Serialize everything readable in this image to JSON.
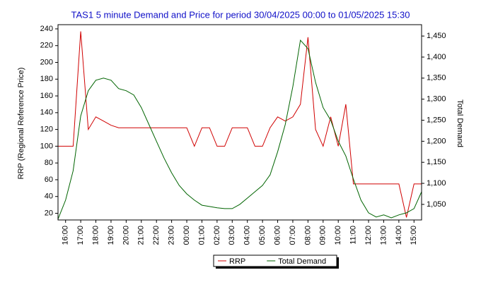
{
  "chart_data": {
    "type": "line",
    "title": "TAS1 5 minute Demand and Price for period 30/04/2025 00:00 to 01/05/2025 15:30",
    "y_label": "RRP (Regional Reference Price)",
    "y2_label": "Total Demand",
    "x": [
      null,
      "16:00",
      null,
      "17:00",
      null,
      "18:00",
      null,
      "19:00",
      null,
      "20:00",
      null,
      "21:00",
      null,
      "22:00",
      null,
      "23:00",
      null,
      "00:00",
      null,
      "01:00",
      null,
      "02:00",
      null,
      "03:00",
      null,
      "04:00",
      null,
      "05:00",
      null,
      "06:00",
      null,
      "07:00",
      null,
      "08:00",
      null,
      "09:00",
      null,
      "10:00",
      null,
      "11:00",
      null,
      "12:00",
      null,
      "13:00",
      null,
      "14:00",
      null,
      "15:00",
      null
    ],
    "ylim": [
      12,
      245
    ],
    "yticks": [
      20,
      40,
      60,
      80,
      100,
      120,
      140,
      160,
      180,
      200,
      220,
      240
    ],
    "y2lim": [
      1013,
      1477
    ],
    "y2ticks": [
      {
        "value": 1050,
        "label": "1,050"
      },
      {
        "value": 1100,
        "label": "1,100"
      },
      {
        "value": 1150,
        "label": "1,150"
      },
      {
        "value": 1200,
        "label": "1,200"
      },
      {
        "value": 1250,
        "label": "1,250"
      },
      {
        "value": 1300,
        "label": "1,300"
      },
      {
        "value": 1350,
        "label": "1,350"
      },
      {
        "value": 1400,
        "label": "1,400"
      },
      {
        "value": 1450,
        "label": "1,450"
      }
    ],
    "series": [
      {
        "name": "RRP",
        "color": "#d00000",
        "values": [
          100,
          100,
          100,
          237,
          120,
          135,
          130,
          125,
          122,
          122,
          122,
          122,
          122,
          122,
          122,
          122,
          122,
          122,
          100,
          122,
          122,
          100,
          100,
          122,
          122,
          122,
          100,
          100,
          122,
          135,
          130,
          135,
          150,
          230,
          120,
          100,
          135,
          100,
          150,
          55,
          55,
          55,
          55,
          55,
          55,
          55,
          15,
          55,
          55
        ]
      },
      {
        "name": "Total Demand",
        "color": "#006400",
        "axis": "y2",
        "values": [
          1015,
          1060,
          1130,
          1260,
          1320,
          1345,
          1350,
          1345,
          1325,
          1320,
          1310,
          1280,
          1240,
          1200,
          1160,
          1125,
          1095,
          1075,
          1060,
          1048,
          1045,
          1042,
          1040,
          1040,
          1050,
          1065,
          1080,
          1095,
          1120,
          1175,
          1240,
          1330,
          1440,
          1420,
          1340,
          1280,
          1250,
          1200,
          1165,
          1110,
          1060,
          1030,
          1020,
          1025,
          1018,
          1025,
          1030,
          1040,
          1080
        ]
      }
    ],
    "legend": "bottom"
  }
}
